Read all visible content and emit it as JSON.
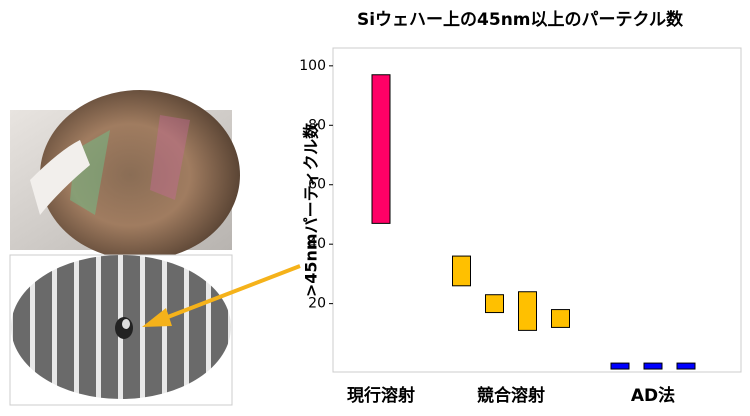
{
  "chart_data": {
    "type": "range-bar",
    "title": "Siウェハー上の45nm以上のパーテクル数",
    "y_label": ">45nmパーティクル数",
    "groups": [
      {
        "label": "現行溶射",
        "color": "#ff0066",
        "ranges": [
          [
            47,
            97
          ]
        ]
      },
      {
        "label": "競合溶射",
        "color": "#ffc000",
        "ranges": [
          [
            26,
            36
          ],
          [
            17,
            23
          ],
          [
            11,
            24
          ],
          [
            12,
            18
          ]
        ]
      },
      {
        "label": "AD法",
        "color": "#0000ff",
        "ranges": [
          [
            -2,
            0
          ],
          [
            -2,
            0
          ],
          [
            -2,
            0
          ]
        ]
      }
    ],
    "ylim": [
      -3,
      106
    ],
    "yticks": [
      20,
      40,
      60,
      80,
      100
    ]
  }
}
